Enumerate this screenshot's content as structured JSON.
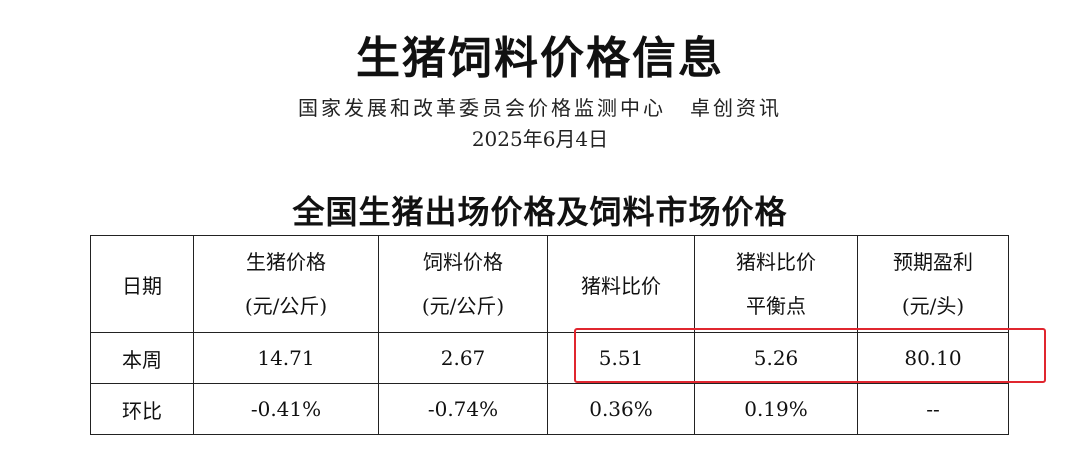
{
  "doc": {
    "title": "生猪饲料价格信息",
    "source_1": "国家发展和改革委员会价格监测中心",
    "source_2": "卓创资讯",
    "date": "2025年6月4日"
  },
  "table": {
    "title": "全国生猪出场价格及饲料市场价格",
    "headers": [
      {
        "line1": "日期",
        "line2": ""
      },
      {
        "line1": "生猪价格",
        "line2": "(元/公斤)"
      },
      {
        "line1": "饲料价格",
        "line2": "(元/公斤)"
      },
      {
        "line1": "猪料比价",
        "line2": ""
      },
      {
        "line1": "猪料比价",
        "line2": "平衡点"
      },
      {
        "line1": "预期盈利",
        "line2": "(元/头)"
      }
    ],
    "rows": [
      [
        "本周",
        "14.71",
        "2.67",
        "5.51",
        "5.26",
        "80.10"
      ],
      [
        "环比",
        "-0.41%",
        "-0.74%",
        "0.36%",
        "0.19%",
        "--"
      ]
    ]
  },
  "colors": {
    "highlight_border": "#e0262f"
  }
}
